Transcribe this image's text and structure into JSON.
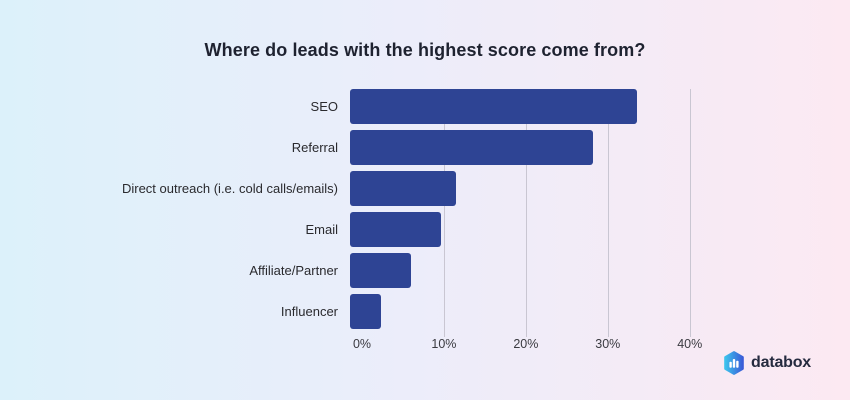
{
  "chart_data": {
    "type": "bar",
    "orientation": "horizontal",
    "title": "Where do leads with the highest score come from?",
    "categories": [
      "SEO",
      "Referral",
      "Direct outreach (i.e. cold calls/emails)",
      "Email",
      "Affiliate/Partner",
      "Influencer"
    ],
    "values": [
      35,
      29.6,
      12.9,
      11.1,
      7.4,
      3.8
    ],
    "unit": "%",
    "x_ticks": [
      "0%",
      "10%",
      "20%",
      "30%",
      "40%"
    ],
    "x_tick_values": [
      0,
      10,
      20,
      30,
      40
    ],
    "xlim": [
      0,
      41.5
    ],
    "grid": "vertical-only",
    "legend": "none",
    "bar_color": "#2e4494",
    "gridline_color": "#c9c6d2"
  },
  "branding": {
    "logo_text": "databox",
    "logo_icon": "databox-hexagon-bar-chart-icon",
    "icon_gradient_start": "#3cc2ec",
    "icon_gradient_end": "#3a5dd8"
  },
  "background": {
    "gradient_left": "#dcf1fa",
    "gradient_right": "#fce9f2"
  }
}
